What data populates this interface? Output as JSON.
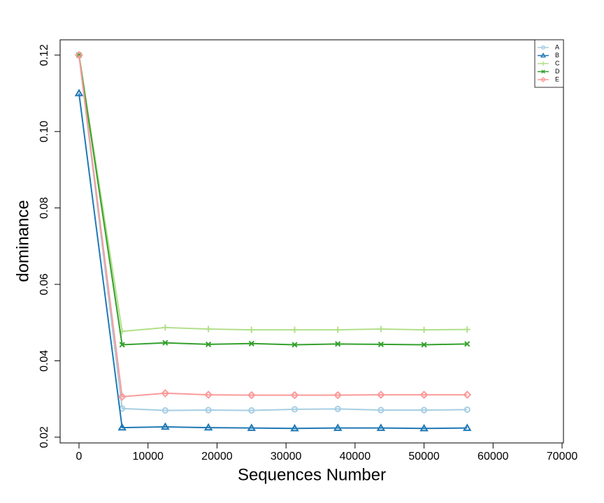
{
  "chart_data": {
    "type": "line",
    "xlabel": "Sequences Number",
    "ylabel": "dominance",
    "x": [
      0,
      6250,
      12500,
      18750,
      25000,
      31250,
      37500,
      43750,
      50000,
      56250
    ],
    "series": [
      {
        "name": "A",
        "color": "#a6cee3",
        "marker": "circle",
        "values": [
          0.12,
          0.0275,
          0.027,
          0.0271,
          0.027,
          0.0273,
          0.0274,
          0.0271,
          0.0271,
          0.0272
        ]
      },
      {
        "name": "B",
        "color": "#1f78b4",
        "marker": "triangle",
        "values": [
          0.11,
          0.0225,
          0.0227,
          0.0225,
          0.0224,
          0.0223,
          0.0224,
          0.0224,
          0.0223,
          0.0224
        ]
      },
      {
        "name": "C",
        "color": "#b2df8a",
        "marker": "plus",
        "values": [
          0.12,
          0.0477,
          0.0487,
          0.0483,
          0.0481,
          0.0481,
          0.0481,
          0.0483,
          0.0481,
          0.0482
        ]
      },
      {
        "name": "D",
        "color": "#33a02c",
        "marker": "x",
        "values": [
          0.12,
          0.0442,
          0.0447,
          0.0443,
          0.0445,
          0.0442,
          0.0444,
          0.0443,
          0.0442,
          0.0444
        ]
      },
      {
        "name": "E",
        "color": "#fb9a99",
        "marker": "diamond",
        "values": [
          0.12,
          0.0306,
          0.0315,
          0.0311,
          0.031,
          0.031,
          0.031,
          0.0311,
          0.0311,
          0.0311
        ]
      }
    ],
    "xlim": [
      -2735,
      70200
    ],
    "xticks": [
      0,
      10000,
      20000,
      30000,
      40000,
      50000,
      60000,
      70000
    ],
    "ylim": [
      0.0185,
      0.124
    ],
    "yticks": [
      {
        "value": 0.02,
        "label": "0.02"
      },
      {
        "value": 0.04,
        "label": "0.04"
      },
      {
        "value": 0.06,
        "label": "0.06"
      },
      {
        "value": 0.08,
        "label": "0.08"
      },
      {
        "value": 0.1,
        "label": "0.10"
      },
      {
        "value": 0.12,
        "label": "0.12"
      }
    ],
    "legend": "top-right"
  }
}
